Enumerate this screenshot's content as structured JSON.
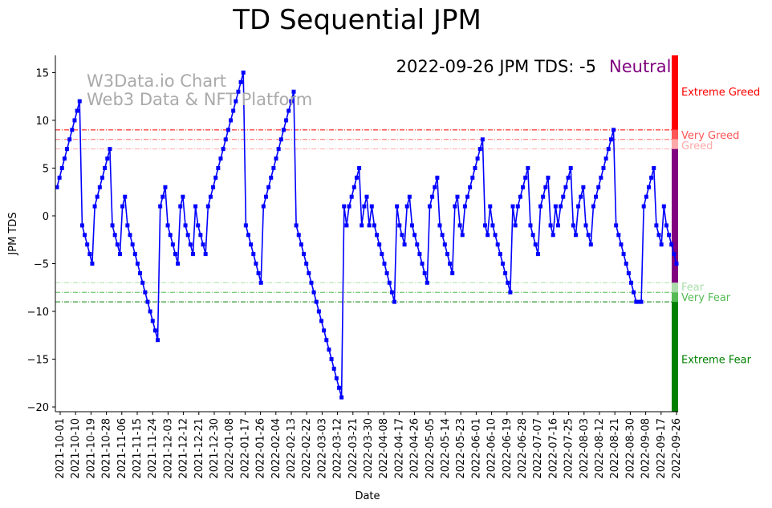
{
  "chart_data": {
    "type": "line",
    "title": "TD Sequential JPM",
    "xlabel": "Date",
    "ylabel": "JPM TDS",
    "ylim": [
      -20.5,
      16.8
    ],
    "yticks": [
      15,
      10,
      5,
      0,
      -5,
      -10,
      -15,
      -20
    ],
    "status": {
      "text": "2022-09-26 JPM TDS: -5",
      "label": "Neutral",
      "label_color": "#800080"
    },
    "watermark": {
      "line1": "W3Data.io Chart",
      "line2": "Web3 Data & NFT Platform",
      "color": "#aaaaaa"
    },
    "x_tick_labels": [
      "2021-10-01",
      "2021-10-10",
      "2021-10-19",
      "2021-10-28",
      "2021-11-06",
      "2021-11-15",
      "2021-11-24",
      "2021-12-03",
      "2021-12-12",
      "2021-12-21",
      "2021-12-30",
      "2022-01-08",
      "2022-01-17",
      "2022-01-26",
      "2022-02-04",
      "2022-02-13",
      "2022-02-22",
      "2022-03-03",
      "2022-03-12",
      "2022-03-21",
      "2022-03-30",
      "2022-04-08",
      "2022-04-17",
      "2022-04-26",
      "2022-05-05",
      "2022-05-14",
      "2022-05-23",
      "2022-06-01",
      "2022-06-10",
      "2022-06-19",
      "2022-06-28",
      "2022-07-07",
      "2022-07-16",
      "2022-07-25",
      "2022-08-03",
      "2022-08-12",
      "2022-08-21",
      "2022-08-30",
      "2022-09-08",
      "2022-09-17",
      "2022-09-26"
    ],
    "reference_lines": [
      {
        "value": 9,
        "color": "#ff0000",
        "label": "Very Greed"
      },
      {
        "value": 8,
        "color": "#ff6666",
        "label": ""
      },
      {
        "value": 7,
        "color": "#ffaaaa",
        "label": "Greed"
      },
      {
        "value": -7,
        "color": "#aaddaa",
        "label": "Fear"
      },
      {
        "value": -8,
        "color": "#55bb55",
        "label": "Very Fear"
      },
      {
        "value": -9,
        "color": "#008000",
        "label": ""
      }
    ],
    "zones": [
      {
        "label": "Extreme Greed",
        "from": 9,
        "to": 16.8,
        "color": "#ff0000"
      },
      {
        "label": "",
        "from": 8,
        "to": 9,
        "color": "#ff5555"
      },
      {
        "label": "",
        "from": 7,
        "to": 8,
        "color": "#ffaaaa"
      },
      {
        "label": "",
        "from": -7,
        "to": 7,
        "color": "#800080"
      },
      {
        "label": "",
        "from": -8,
        "to": -7,
        "color": "#aaddaa"
      },
      {
        "label": "",
        "from": -9,
        "to": -8,
        "color": "#55bb55"
      },
      {
        "label": "Extreme Fear",
        "from": -20.5,
        "to": -9,
        "color": "#008000"
      }
    ],
    "zone_labels": [
      {
        "text": "Extreme Greed",
        "value": 13,
        "color": "#ff0000"
      },
      {
        "text": "Very Greed",
        "value": 8.5,
        "color": "#ff5555"
      },
      {
        "text": "Greed",
        "value": 7.4,
        "color": "#ffaaaa"
      },
      {
        "text": "Fear",
        "value": -7.4,
        "color": "#aaddaa"
      },
      {
        "text": "Very Fear",
        "value": -8.5,
        "color": "#55bb55"
      },
      {
        "text": "Extreme Fear",
        "value": -15,
        "color": "#008000"
      }
    ],
    "line_color": "#0000ff",
    "series": [
      {
        "name": "JPM TDS",
        "values": [
          3,
          4,
          5,
          6,
          7,
          8,
          9,
          10,
          11,
          12,
          -1,
          -2,
          -3,
          -4,
          -5,
          1,
          2,
          3,
          4,
          5,
          6,
          7,
          -1,
          -2,
          -3,
          -4,
          1,
          2,
          -1,
          -2,
          -3,
          -4,
          -5,
          -6,
          -7,
          -8,
          -9,
          -10,
          -11,
          -12,
          -13,
          1,
          2,
          3,
          -1,
          -2,
          -3,
          -4,
          -5,
          1,
          2,
          -1,
          -2,
          -3,
          -4,
          1,
          -1,
          -2,
          -3,
          -4,
          1,
          2,
          3,
          4,
          5,
          6,
          7,
          8,
          9,
          10,
          11,
          12,
          13,
          14,
          15,
          -1,
          -2,
          -3,
          -4,
          -5,
          -6,
          -7,
          1,
          2,
          3,
          4,
          5,
          6,
          7,
          8,
          9,
          10,
          11,
          12,
          13,
          -1,
          -2,
          -3,
          -4,
          -5,
          -6,
          -7,
          -8,
          -9,
          -10,
          -11,
          -12,
          -13,
          -14,
          -15,
          -16,
          -17,
          -18,
          -19,
          1,
          -1,
          1,
          2,
          3,
          4,
          5,
          -1,
          1,
          2,
          -1,
          1,
          -1,
          -2,
          -3,
          -4,
          -5,
          -6,
          -7,
          -8,
          -9,
          1,
          -1,
          -2,
          -3,
          1,
          2,
          -1,
          -2,
          -3,
          -4,
          -5,
          -6,
          -7,
          1,
          2,
          3,
          4,
          -1,
          -2,
          -3,
          -4,
          -5,
          -6,
          1,
          2,
          -1,
          -2,
          1,
          2,
          3,
          4,
          5,
          6,
          7,
          8,
          -1,
          -2,
          1,
          -1,
          -2,
          -3,
          -4,
          -5,
          -6,
          -7,
          -8,
          1,
          -1,
          1,
          2,
          3,
          4,
          5,
          -1,
          -2,
          -3,
          -4,
          1,
          2,
          3,
          4,
          -1,
          -2,
          1,
          -1,
          1,
          2,
          3,
          4,
          5,
          -1,
          -2,
          1,
          2,
          3,
          -1,
          -2,
          -3,
          1,
          2,
          3,
          4,
          5,
          6,
          7,
          8,
          9,
          -1,
          -2,
          -3,
          -4,
          -5,
          -6,
          -7,
          -8,
          -9,
          -9,
          -9,
          1,
          2,
          3,
          4,
          5,
          -1,
          -2,
          -3,
          1,
          -1,
          -2,
          -3,
          -4,
          -5
        ]
      }
    ]
  }
}
